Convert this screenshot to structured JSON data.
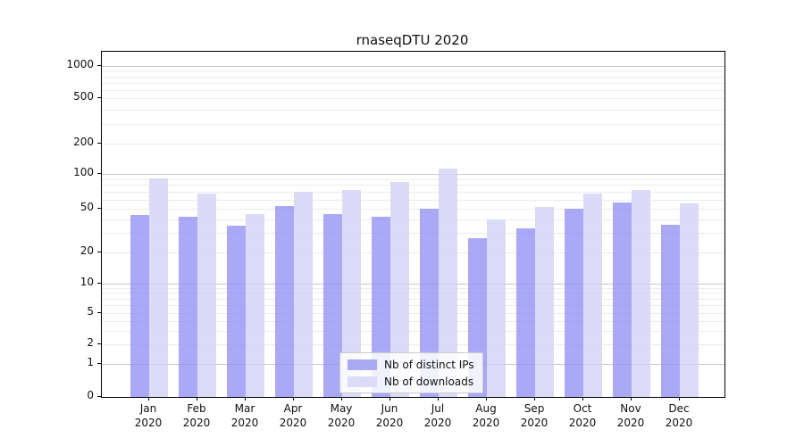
{
  "figure": {
    "title": "rnaseqDTU 2020"
  },
  "legend": {
    "items": [
      {
        "label": "Nb of distinct IPs",
        "color": "#a9a9f6"
      },
      {
        "label": "Nb of downloads",
        "color": "#dcdcf8"
      }
    ]
  },
  "axes": {
    "yticks": [
      "0",
      "1",
      "2",
      "5",
      "10",
      "20",
      "50",
      "100",
      "200",
      "500",
      "1000"
    ],
    "xticks": [
      {
        "month": "Jan",
        "year": "2020"
      },
      {
        "month": "Feb",
        "year": "2020"
      },
      {
        "month": "Mar",
        "year": "2020"
      },
      {
        "month": "Apr",
        "year": "2020"
      },
      {
        "month": "May",
        "year": "2020"
      },
      {
        "month": "Jun",
        "year": "2020"
      },
      {
        "month": "Jul",
        "year": "2020"
      },
      {
        "month": "Aug",
        "year": "2020"
      },
      {
        "month": "Sep",
        "year": "2020"
      },
      {
        "month": "Oct",
        "year": "2020"
      },
      {
        "month": "Nov",
        "year": "2020"
      },
      {
        "month": "Dec",
        "year": "2020"
      }
    ]
  },
  "chart_data": {
    "type": "bar",
    "title": "rnaseqDTU 2020",
    "categories": [
      "Jan 2020",
      "Feb 2020",
      "Mar 2020",
      "Apr 2020",
      "May 2020",
      "Jun 2020",
      "Jul 2020",
      "Aug 2020",
      "Sep 2020",
      "Oct 2020",
      "Nov 2020",
      "Dec 2020"
    ],
    "series": [
      {
        "name": "Nb of distinct IPs",
        "color": "rgba(148,148,245,0.8)",
        "values": [
          44,
          42,
          35,
          53,
          45,
          42,
          50,
          27,
          33,
          50,
          57,
          36
        ]
      },
      {
        "name": "Nb of downloads",
        "color": "rgba(211,211,246,0.82)",
        "values": [
          91,
          67,
          45,
          70,
          72,
          84,
          112,
          40,
          52,
          68,
          72,
          56
        ]
      }
    ],
    "xlabel": "",
    "ylabel": "",
    "yscale": "symlog",
    "yticks": [
      0,
      1,
      2,
      5,
      10,
      20,
      50,
      100,
      200,
      500,
      1000
    ],
    "ylim": [
      0,
      1400
    ],
    "grid": true,
    "legend_position": "lower center"
  }
}
